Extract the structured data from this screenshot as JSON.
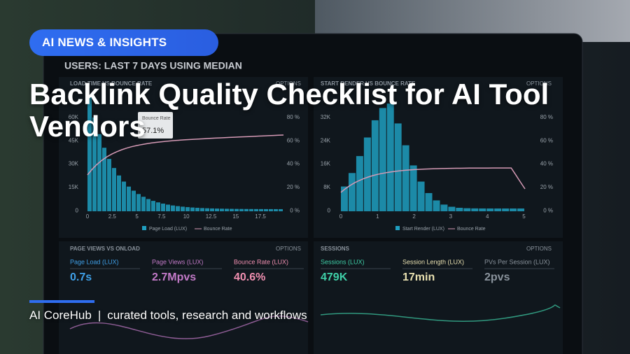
{
  "badge": "AI NEWS & INSIGHTS",
  "title": "Backlink Quality Checklist for AI Tool Vendors",
  "footer": {
    "brand": "AI CoreHub",
    "separator": "|",
    "tagline": "curated tools, research and workflows"
  },
  "background_screen": {
    "header": "USERS: LAST 7 DAYS USING MEDIAN",
    "panels": [
      {
        "title": "LOAD TIME VS BOUNCE RATE",
        "options": "OPTIONS",
        "y_left": [
          "60K",
          "45K",
          "30K",
          "15K",
          "0"
        ],
        "y_right": [
          "80 %",
          "60 %",
          "40 %",
          "20 %",
          "0 %"
        ],
        "x": [
          "0",
          "2.5",
          "5",
          "7.5",
          "10",
          "12.5",
          "15",
          "17.5"
        ],
        "legend": [
          "Page Load (LUX)",
          "Bounce Rate"
        ],
        "tooltip": {
          "label": "Bounce Rate",
          "value": "57.1%"
        }
      },
      {
        "title": "START RENDER VS BOUNCE RATE",
        "options": "OPTIONS",
        "y_left": [
          "32K",
          "24K",
          "16K",
          "8K",
          "0"
        ],
        "y_right": [
          "80 %",
          "60 %",
          "40 %",
          "20 %",
          "0 %"
        ],
        "x": [
          "0",
          "1",
          "2",
          "3",
          "4",
          "5"
        ],
        "legend": [
          "Start Render (LUX)",
          "Bounce Rate"
        ]
      }
    ],
    "bottom_panels": [
      {
        "title": "PAGE VIEWS VS ONLOAD",
        "options": "OPTIONS",
        "metrics": [
          {
            "label": "Page Load (LUX)",
            "value": "0.7s"
          },
          {
            "label": "Page Views (LUX)",
            "value": "2.7Mpvs"
          },
          {
            "label": "Bounce Rate (LUX)",
            "value": "40.6%"
          }
        ]
      },
      {
        "title": "SESSIONS",
        "options": "OPTIONS",
        "metrics": [
          {
            "label": "Sessions (LUX)",
            "value": "479K"
          },
          {
            "label": "Session Length (LUX)",
            "value": "17min"
          },
          {
            "label": "PVs Per Session (LUX)",
            "value": "2pvs"
          }
        ]
      }
    ]
  }
}
